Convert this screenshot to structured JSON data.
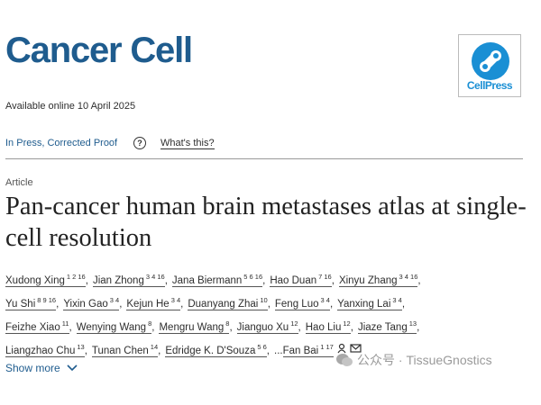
{
  "header": {
    "journal": "Cancer Cell",
    "publisher_logo": "CellPress",
    "available": "Available online 10 April 2025"
  },
  "status": {
    "label": "In Press, Corrected Proof",
    "help_icon": "?",
    "help_link": "What's this?"
  },
  "article": {
    "type": "Article",
    "title": "Pan-cancer human brain metastases atlas at single-cell resolution"
  },
  "authors": {
    "separator": ",",
    "ellipsis": "...",
    "rows": [
      [
        {
          "name": "Xudong Xing",
          "sup": "1 2 16"
        },
        {
          "name": "Jian Zhong",
          "sup": "3 4 16"
        },
        {
          "name": "Jana Biermann",
          "sup": "5 6 16"
        },
        {
          "name": "Hao Duan",
          "sup": "7 16"
        },
        {
          "name": "Xinyu Zhang",
          "sup": "3 4 16"
        }
      ],
      [
        {
          "name": "Yu Shi",
          "sup": "8 9 16"
        },
        {
          "name": "Yixin Gao",
          "sup": "3 4"
        },
        {
          "name": "Kejun He",
          "sup": "3 4"
        },
        {
          "name": "Duanyang Zhai",
          "sup": "10"
        },
        {
          "name": "Feng Luo",
          "sup": "3 4"
        },
        {
          "name": "Yanxing Lai",
          "sup": "3 4"
        }
      ],
      [
        {
          "name": "Feizhe Xiao",
          "sup": "11"
        },
        {
          "name": "Wenying Wang",
          "sup": "8"
        },
        {
          "name": "Mengru Wang",
          "sup": "8"
        },
        {
          "name": "Jianguo Xu",
          "sup": "12"
        },
        {
          "name": "Hao Liu",
          "sup": "12"
        },
        {
          "name": "Jiaze Tang",
          "sup": "13"
        }
      ],
      [
        {
          "name": "Liangzhao Chu",
          "sup": "13"
        },
        {
          "name": "Tunan Chen",
          "sup": "14"
        },
        {
          "name": "Edridge K. D'Souza",
          "sup": "5 6"
        },
        {
          "name": "Fan Bai",
          "sup": "1 17"
        }
      ]
    ]
  },
  "show_more": "Show more",
  "watermark": "公众号 · TissueGnostics"
}
